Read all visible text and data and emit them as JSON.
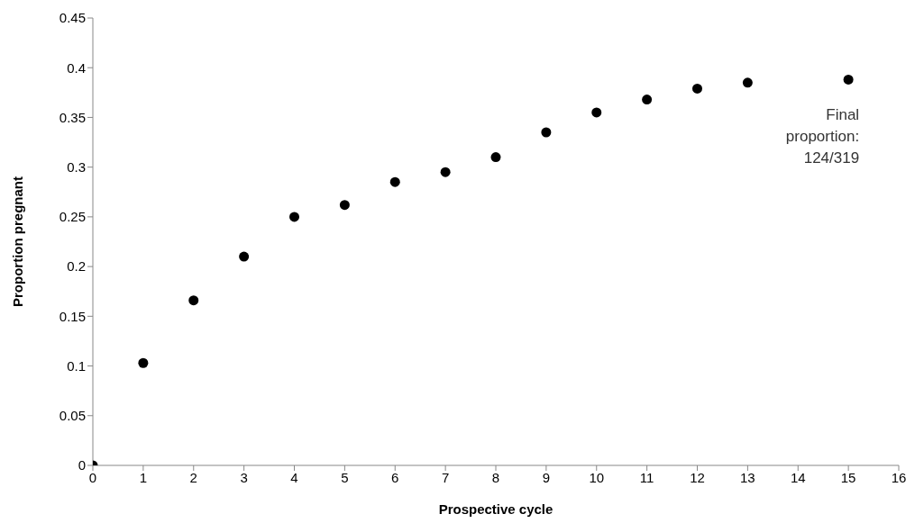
{
  "chart_data": {
    "type": "scatter",
    "xlabel": "Prospective cycle",
    "ylabel": "Proportion pregnant",
    "x": [
      0,
      1,
      2,
      3,
      4,
      5,
      6,
      7,
      8,
      9,
      10,
      11,
      12,
      13,
      15
    ],
    "series": [
      {
        "color": "#000000",
        "values": [
          0,
          0.103,
          0.166,
          0.21,
          0.25,
          0.262,
          0.285,
          0.295,
          0.31,
          0.335,
          0.355,
          0.368,
          0.379,
          0.385,
          0.388
        ]
      }
    ],
    "xlim": [
      0,
      16
    ],
    "xticks": [
      0,
      1,
      2,
      3,
      4,
      5,
      6,
      7,
      8,
      9,
      10,
      11,
      12,
      13,
      14,
      15,
      16
    ],
    "ylim": [
      0,
      0.45
    ],
    "yticks": [
      0,
      0.05,
      0.1,
      0.15,
      0.2,
      0.25,
      0.3,
      0.35,
      0.4,
      0.45
    ],
    "grid": false,
    "legend": false,
    "marker": "circle",
    "annotations": [
      {
        "text": "Final proportion: 124/319",
        "x": 15,
        "y": 0.388
      }
    ]
  }
}
